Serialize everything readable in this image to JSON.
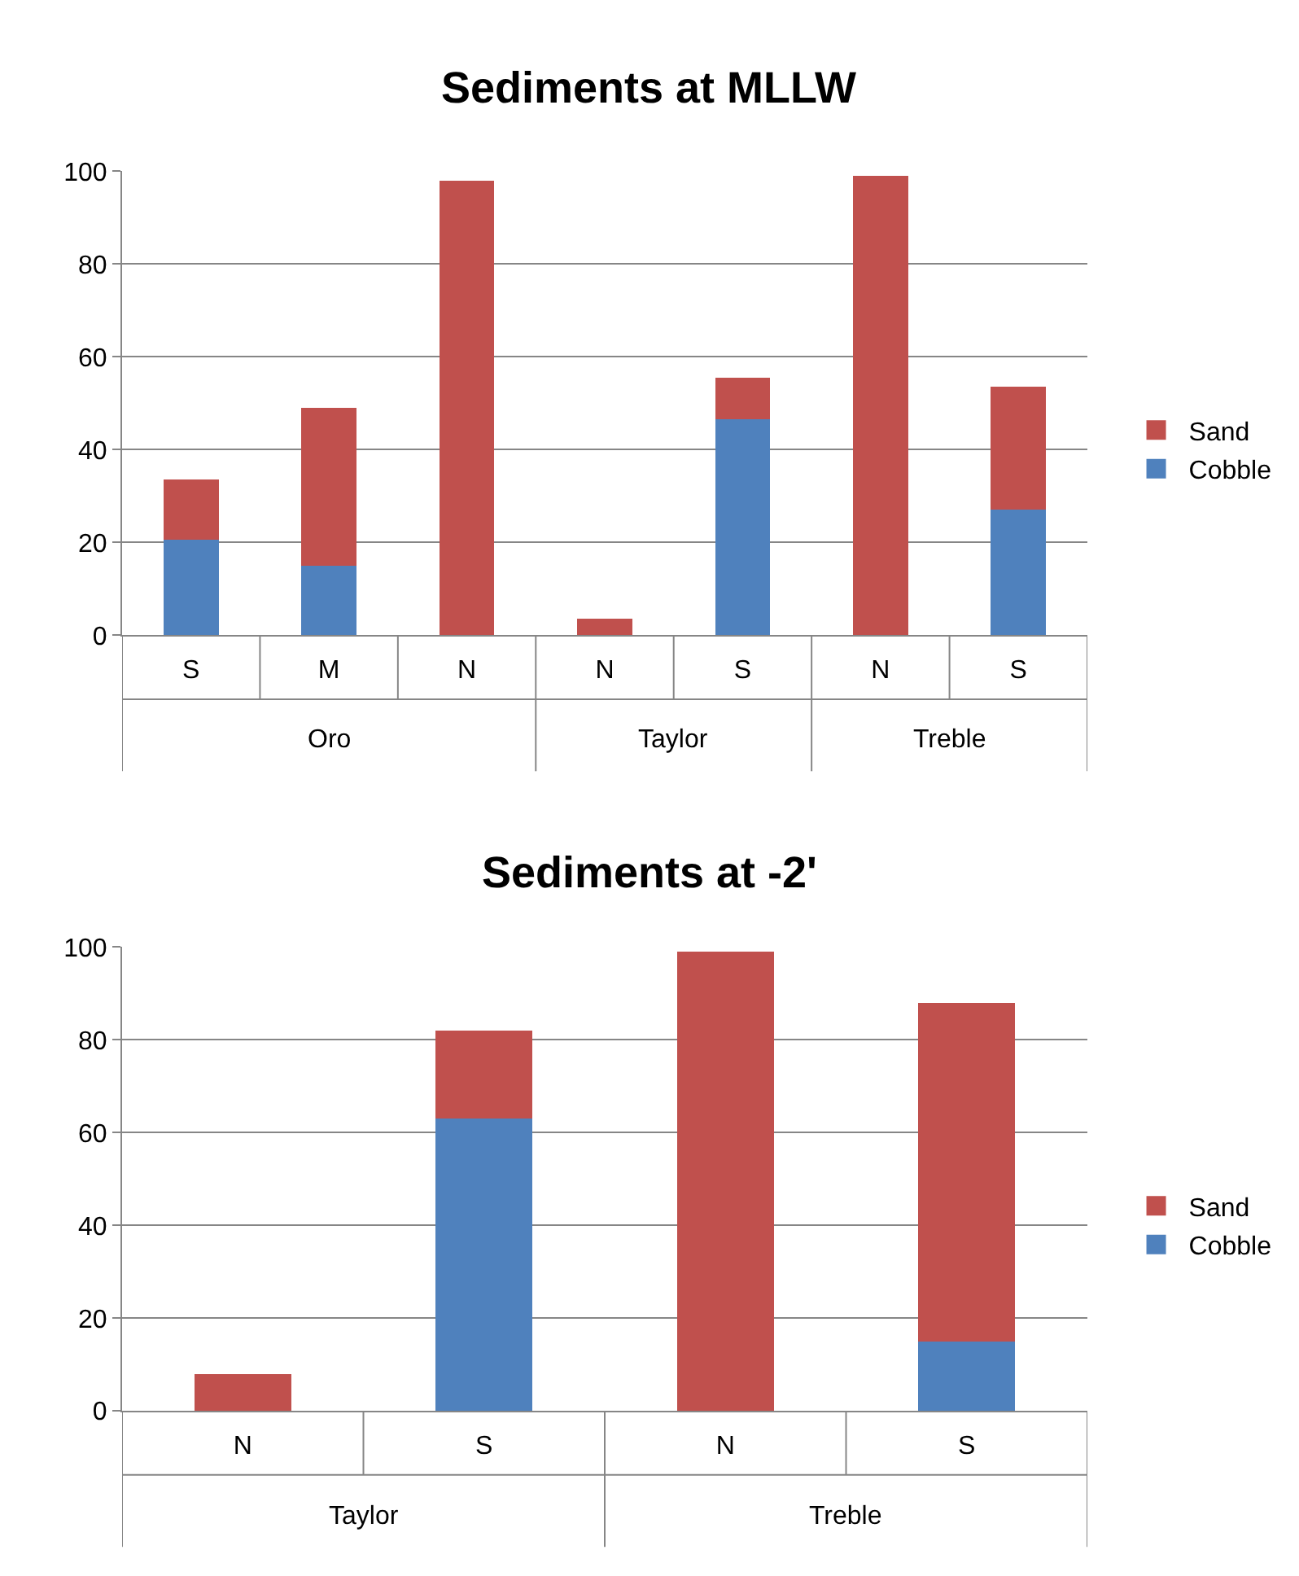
{
  "chart_data": [
    {
      "type": "bar",
      "title": "Sediments at MLLW",
      "stacked": true,
      "categories": [
        [
          "Oro",
          "S"
        ],
        [
          null,
          "M"
        ],
        [
          null,
          "N"
        ],
        [
          "Taylor",
          "N"
        ],
        [
          null,
          "S"
        ],
        [
          "Treble",
          "N"
        ],
        [
          null,
          "S"
        ]
      ],
      "series": [
        {
          "name": "Cobble",
          "color": "#4f81bd",
          "values": [
            20.5,
            15,
            0,
            0,
            46.5,
            0,
            27
          ]
        },
        {
          "name": "Sand",
          "color": "#c0504d",
          "values": [
            13,
            34,
            98,
            3.5,
            9,
            99,
            26.5
          ]
        }
      ],
      "ylim": [
        0,
        100
      ],
      "yticks": [
        0,
        20,
        40,
        60,
        80,
        100
      ],
      "grid": "y",
      "legend": "right"
    },
    {
      "type": "bar",
      "title": "Sediments at -2'",
      "stacked": true,
      "categories": [
        [
          "Taylor",
          "N"
        ],
        [
          null,
          "S"
        ],
        [
          "Treble",
          "N"
        ],
        [
          null,
          "S"
        ]
      ],
      "series": [
        {
          "name": "Cobble",
          "color": "#4f81bd",
          "values": [
            0,
            63,
            0,
            15
          ]
        },
        {
          "name": "Sand",
          "color": "#c0504d",
          "values": [
            8,
            19,
            99,
            73
          ]
        }
      ],
      "ylim": [
        0,
        100
      ],
      "yticks": [
        0,
        20,
        40,
        60,
        80,
        100
      ],
      "grid": "y",
      "legend": "right"
    }
  ]
}
